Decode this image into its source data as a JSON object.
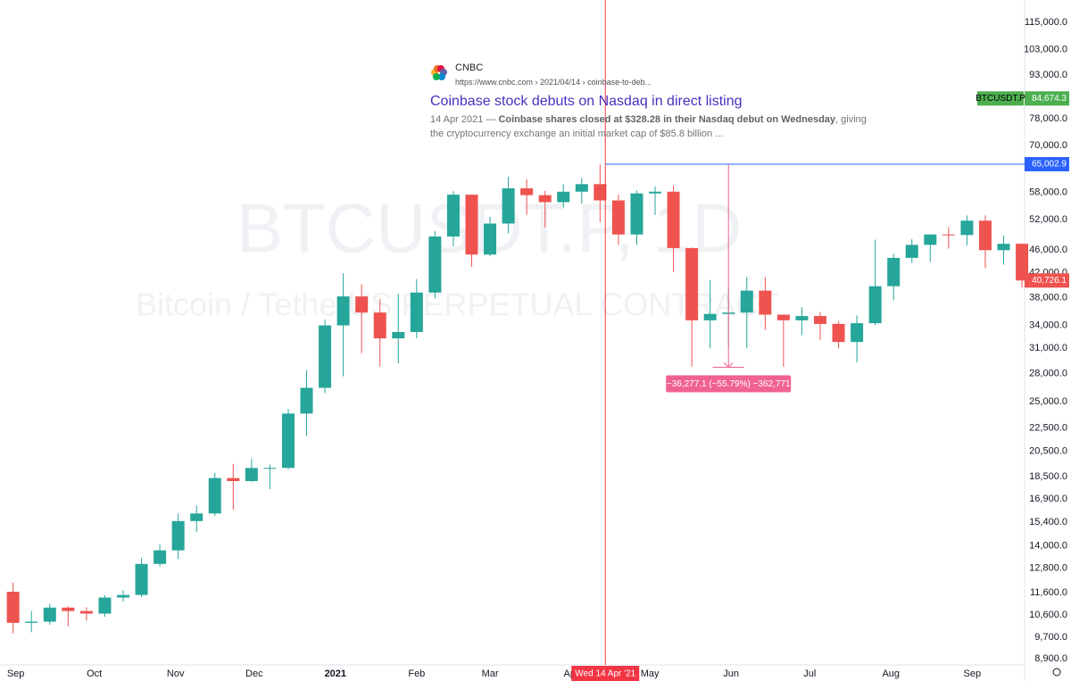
{
  "chart_data": {
    "type": "candlestick",
    "watermark": "BTCUSDT.P, 1D",
    "watermark_subtitle": "Bitcoin / TetherUS PERPETUAL CONTRACT",
    "log_scale": true,
    "ylim": [
      8680,
      125800
    ],
    "yticks": [
      {
        "value": 115000,
        "label": "115,000.0"
      },
      {
        "value": 103000,
        "label": "103,000.0"
      },
      {
        "value": 93000,
        "label": "93,000.0"
      },
      {
        "value": 78000,
        "label": "78,000.0"
      },
      {
        "value": 70000,
        "label": "70,000.0"
      },
      {
        "value": 58000,
        "label": "58,000.0"
      },
      {
        "value": 52000,
        "label": "52,000.0"
      },
      {
        "value": 46000,
        "label": "46,000.0"
      },
      {
        "value": 42000,
        "label": "42,000.0"
      },
      {
        "value": 38000,
        "label": "38,000.0"
      },
      {
        "value": 34000,
        "label": "34,000.0"
      },
      {
        "value": 31000,
        "label": "31,000.0"
      },
      {
        "value": 28000,
        "label": "28,000.0"
      },
      {
        "value": 25000,
        "label": "25,000.0"
      },
      {
        "value": 22500,
        "label": "22,500.0"
      },
      {
        "value": 20500,
        "label": "20,500.0"
      },
      {
        "value": 18500,
        "label": "18,500.0"
      },
      {
        "value": 16900,
        "label": "16,900.0"
      },
      {
        "value": 15400,
        "label": "15,400.0"
      },
      {
        "value": 14000,
        "label": "14,000.0"
      },
      {
        "value": 12800,
        "label": "12,800.0"
      },
      {
        "value": 11600,
        "label": "11,600.0"
      },
      {
        "value": 10600,
        "label": "10,600.0"
      },
      {
        "value": 9700,
        "label": "9,700.0"
      },
      {
        "value": 8900,
        "label": "8,900.0"
      }
    ],
    "xlim": [
      "2020-08-26",
      "2021-09-21"
    ],
    "xticks": [
      {
        "value": "2020-09-01",
        "label": "Sep"
      },
      {
        "value": "2020-10-01",
        "label": "Oct"
      },
      {
        "value": "2020-11-01",
        "label": "Nov"
      },
      {
        "value": "2020-12-01",
        "label": "Dec"
      },
      {
        "value": "2021-01-01",
        "label": "2021"
      },
      {
        "value": "2021-02-01",
        "label": "Feb"
      },
      {
        "value": "2021-03-01",
        "label": "Mar"
      },
      {
        "value": "2021-04-01",
        "label": "Apr"
      },
      {
        "value": "2021-05-01",
        "label": "May"
      },
      {
        "value": "2021-06-01",
        "label": "Jun"
      },
      {
        "value": "2021-07-01",
        "label": "Jul"
      },
      {
        "value": "2021-08-01",
        "label": "Aug"
      },
      {
        "value": "2021-09-01",
        "label": "Sep"
      }
    ],
    "up_color": "#26a69a",
    "down_color": "#ef5350",
    "x": [
      "2020-08-31",
      "2020-09-07",
      "2020-09-14",
      "2020-09-21",
      "2020-09-28",
      "2020-10-05",
      "2020-10-12",
      "2020-10-19",
      "2020-10-26",
      "2020-11-02",
      "2020-11-09",
      "2020-11-16",
      "2020-11-23",
      "2020-11-30",
      "2020-12-07",
      "2020-12-14",
      "2020-12-21",
      "2020-12-28",
      "2021-01-04",
      "2021-01-11",
      "2021-01-18",
      "2021-01-25",
      "2021-02-01",
      "2021-02-08",
      "2021-02-15",
      "2021-02-22",
      "2021-03-01",
      "2021-03-08",
      "2021-03-15",
      "2021-03-22",
      "2021-03-29",
      "2021-04-05",
      "2021-04-12",
      "2021-04-19",
      "2021-04-26",
      "2021-05-03",
      "2021-05-10",
      "2021-05-17",
      "2021-05-24",
      "2021-05-31",
      "2021-06-07",
      "2021-06-14",
      "2021-06-21",
      "2021-06-28",
      "2021-07-05",
      "2021-07-12",
      "2021-07-19",
      "2021-07-26",
      "2021-08-02",
      "2021-08-09",
      "2021-08-16",
      "2021-08-23",
      "2021-08-30",
      "2021-09-06",
      "2021-09-13",
      "2021-09-20"
    ],
    "series": [
      {
        "name": "BTCUSDT.P",
        "open": [
          11650,
          10280,
          10330,
          10930,
          10780,
          10670,
          11380,
          11500,
          13030,
          13760,
          15480,
          15960,
          18400,
          18180,
          19160,
          19170,
          23850,
          26450,
          34000,
          38200,
          35800,
          32270,
          33100,
          38800,
          48600,
          57500,
          45200,
          51200,
          59000,
          57400,
          55800,
          58200,
          60000,
          56200,
          49000,
          57800,
          58200,
          46400,
          34700,
          35600,
          35800,
          39100,
          35500,
          34700,
          35300,
          34200,
          31800,
          34300,
          39800,
          44600,
          47000,
          49000,
          48900,
          51800,
          46000,
          47200
        ],
        "high": [
          12090,
          10780,
          11100,
          10990,
          10950,
          11490,
          11720,
          13350,
          14100,
          15960,
          16490,
          18800,
          19480,
          19900,
          19420,
          24300,
          28400,
          34800,
          41950,
          40100,
          37800,
          38600,
          40950,
          49700,
          58300,
          57500,
          52600,
          61800,
          61200,
          58400,
          60000,
          61500,
          64900,
          57500,
          58500,
          59500,
          59600,
          46500,
          40800,
          39400,
          41300,
          41300,
          35500,
          36600,
          35900,
          34600,
          35400,
          48000,
          45300,
          48100,
          49000,
          50500,
          52900,
          52900,
          48800,
          47300
        ],
        "low": [
          9850,
          9900,
          10200,
          10130,
          10370,
          10530,
          11200,
          11400,
          12900,
          13290,
          14800,
          15800,
          16200,
          18100,
          17600,
          19050,
          21800,
          25900,
          27700,
          30400,
          28800,
          29200,
          32300,
          37900,
          46700,
          43000,
          44900,
          49200,
          53000,
          50400,
          54600,
          55500,
          51500,
          47000,
          47000,
          53000,
          42100,
          28800,
          31000,
          31100,
          31000,
          33400,
          28800,
          32700,
          32100,
          31000,
          29300,
          34000,
          37600,
          43700,
          43900,
          46300,
          46900,
          42800,
          43400,
          39600
        ],
        "close": [
          10280,
          10330,
          10930,
          10780,
          10670,
          11380,
          11500,
          13030,
          13760,
          15480,
          15960,
          18400,
          18180,
          19160,
          19170,
          23850,
          26450,
          34000,
          38200,
          35800,
          32270,
          33100,
          38800,
          48600,
          57500,
          45200,
          51200,
          59000,
          57400,
          55800,
          58200,
          60000,
          56200,
          49000,
          57800,
          58200,
          46400,
          34700,
          35600,
          35800,
          39100,
          35500,
          34700,
          35300,
          34200,
          31800,
          34300,
          39800,
          44600,
          47000,
          49000,
          48900,
          51800,
          46000,
          47200,
          40726.1
        ]
      }
    ],
    "price_tags": [
      {
        "name": "BTCUSDT.P",
        "value": 84674.3,
        "label": "84,674.3",
        "color": "#4caf50"
      },
      {
        "value": 65002.9,
        "label": "65,002.9",
        "color": "#2962ff"
      },
      {
        "value": 40726.1,
        "label": "40,726.1",
        "color": "#ef5350"
      }
    ],
    "crosshair": {
      "date": "2021-04-14",
      "label": "Wed 14 Apr '21",
      "color": "#f23645"
    },
    "measure": {
      "from": 65002.9,
      "to": 28725.8,
      "label": "−36,277.1 (−55.79%) −362,771",
      "start": "2021-05-25",
      "end": "2021-06-06",
      "color": "#f06292"
    },
    "news": {
      "source": "CNBC",
      "url": "https://www.cnbc.com › 2021/04/14 › coinbase-to-deb...",
      "title": "Coinbase stock debuts on Nasdaq in direct listing",
      "date": "14 Apr 2021 — ",
      "highlight": "Coinbase shares closed at $328.28 in their Nasdaq debut on Wednesday",
      "snippet": ", giving the cryptocurrency exchange an initial market cap of $85.8 billion ..."
    }
  }
}
